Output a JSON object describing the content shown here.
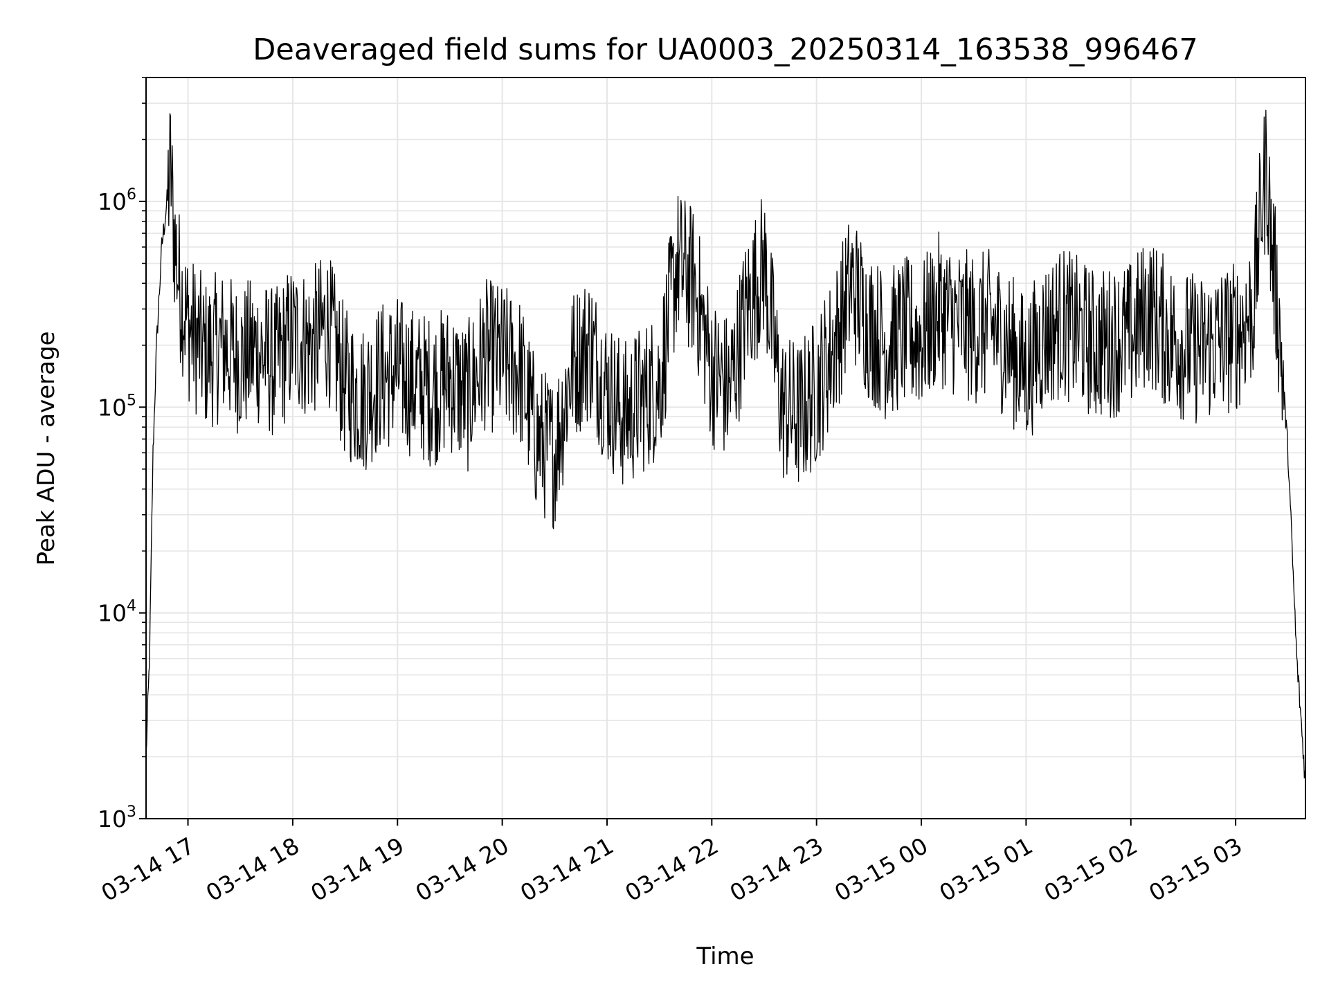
{
  "chart_data": {
    "type": "line",
    "title": "Deaveraged field sums for UA0003_20250314_163538_996467",
    "xlabel": "Time",
    "ylabel": "Peak ADU - average",
    "yscale": "log",
    "ylim": [
      1000,
      4000000
    ],
    "xlim": [
      "03-14 16:36",
      "03-15 03:40"
    ],
    "grid": "on (major and minor)",
    "legend": "none",
    "x_ticks": [
      "03-14 17",
      "03-14 18",
      "03-14 19",
      "03-14 20",
      "03-14 21",
      "03-14 22",
      "03-14 23",
      "03-15 00",
      "03-15 01",
      "03-15 02",
      "03-15 03"
    ],
    "y_ticks": [
      {
        "base": "10",
        "exp": "3"
      },
      {
        "base": "10",
        "exp": "4"
      },
      {
        "base": "10",
        "exp": "5"
      },
      {
        "base": "10",
        "exp": "6"
      }
    ],
    "series": [
      {
        "color": "#000000",
        "points": [
          [
            "03-14 16:36",
            2000
          ],
          [
            "03-14 16:38",
            6000
          ],
          [
            "03-14 16:40",
            60000
          ],
          [
            "03-14 16:42",
            200000
          ],
          [
            "03-14 16:45",
            600000
          ],
          [
            "03-14 16:48",
            1000000
          ],
          [
            "03-14 16:50",
            1500000
          ],
          [
            "03-14 16:52",
            700000
          ],
          [
            "03-14 16:55",
            400000
          ],
          [
            "03-14 17:00",
            250000
          ],
          [
            "03-14 17:10",
            180000
          ],
          [
            "03-14 17:20",
            200000
          ],
          [
            "03-14 17:30",
            170000
          ],
          [
            "03-14 17:40",
            190000
          ],
          [
            "03-14 17:50",
            160000
          ],
          [
            "03-14 18:00",
            220000
          ],
          [
            "03-14 18:10",
            200000
          ],
          [
            "03-14 18:20",
            250000
          ],
          [
            "03-14 18:30",
            130000
          ],
          [
            "03-14 18:40",
            110000
          ],
          [
            "03-14 18:50",
            140000
          ],
          [
            "03-14 19:00",
            150000
          ],
          [
            "03-14 19:10",
            130000
          ],
          [
            "03-14 19:20",
            120000
          ],
          [
            "03-14 19:30",
            140000
          ],
          [
            "03-14 19:40",
            110000
          ],
          [
            "03-14 19:50",
            180000
          ],
          [
            "03-14 20:00",
            170000
          ],
          [
            "03-14 20:10",
            150000
          ],
          [
            "03-14 20:20",
            70000
          ],
          [
            "03-14 20:30",
            60000
          ],
          [
            "03-14 20:40",
            160000
          ],
          [
            "03-14 20:50",
            200000
          ],
          [
            "03-14 21:00",
            120000
          ],
          [
            "03-14 21:10",
            90000
          ],
          [
            "03-14 21:20",
            110000
          ],
          [
            "03-14 21:30",
            130000
          ],
          [
            "03-14 21:40",
            500000
          ],
          [
            "03-14 21:50",
            400000
          ],
          [
            "03-14 22:00",
            150000
          ],
          [
            "03-14 22:10",
            120000
          ],
          [
            "03-14 22:20",
            300000
          ],
          [
            "03-14 22:30",
            500000
          ],
          [
            "03-14 22:40",
            100000
          ],
          [
            "03-14 22:50",
            90000
          ],
          [
            "03-14 23:00",
            120000
          ],
          [
            "03-14 23:10",
            200000
          ],
          [
            "03-14 23:20",
            400000
          ],
          [
            "03-14 23:30",
            250000
          ],
          [
            "03-14 23:40",
            200000
          ],
          [
            "03-14 23:50",
            230000
          ],
          [
            "03-15 00:00",
            220000
          ],
          [
            "03-15 00:10",
            300000
          ],
          [
            "03-15 00:20",
            260000
          ],
          [
            "03-15 00:30",
            240000
          ],
          [
            "03-15 00:40",
            250000
          ],
          [
            "03-15 00:50",
            200000
          ],
          [
            "03-15 01:00",
            150000
          ],
          [
            "03-15 01:10",
            220000
          ],
          [
            "03-15 01:20",
            260000
          ],
          [
            "03-15 01:30",
            230000
          ],
          [
            "03-15 01:40",
            200000
          ],
          [
            "03-15 01:50",
            210000
          ],
          [
            "03-15 02:00",
            220000
          ],
          [
            "03-15 02:10",
            300000
          ],
          [
            "03-15 02:20",
            230000
          ],
          [
            "03-15 02:30",
            200000
          ],
          [
            "03-15 02:40",
            190000
          ],
          [
            "03-15 02:50",
            210000
          ],
          [
            "03-15 03:00",
            220000
          ],
          [
            "03-15 03:10",
            300000
          ],
          [
            "03-15 03:15",
            1000000
          ],
          [
            "03-15 03:18",
            1500000
          ],
          [
            "03-15 03:20",
            700000
          ],
          [
            "03-15 03:25",
            250000
          ],
          [
            "03-15 03:30",
            60000
          ],
          [
            "03-15 03:35",
            6000
          ],
          [
            "03-15 03:40",
            1500
          ]
        ]
      }
    ]
  }
}
